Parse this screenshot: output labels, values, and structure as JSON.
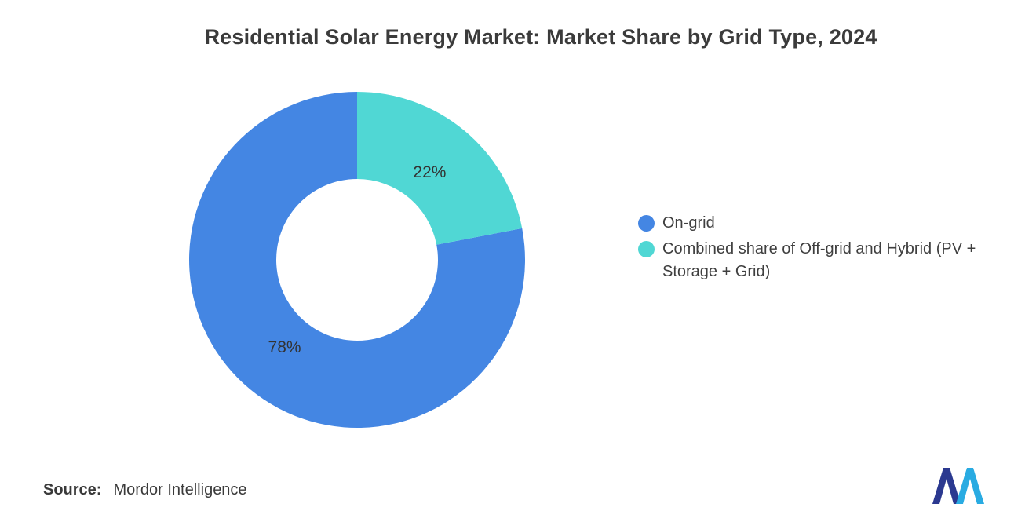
{
  "chart_data": {
    "type": "pie",
    "subtype": "donut",
    "title": "Residential Solar Energy Market: Market Share by Grid Type, 2024",
    "total": 100,
    "slices": [
      {
        "label": "On-grid",
        "value": 78,
        "data_label": "78%",
        "color": "#4486E3"
      },
      {
        "label": "Combined share of Off-grid and Hybrid (PV + Storage + Grid)",
        "value": 22,
        "data_label": "22%",
        "color": "#50D7D4"
      }
    ],
    "start_angle_deg": 0,
    "direction": "counterclockwise",
    "inner_radius_ratio": 0.48,
    "legend_position": "right",
    "data_label_color": "#333333",
    "background": "#FFFFFF"
  },
  "source": {
    "label": "Source:",
    "value": "Mordor Intelligence"
  },
  "logo": {
    "color_primary": "#2B3990",
    "color_secondary": "#29ABE2"
  }
}
